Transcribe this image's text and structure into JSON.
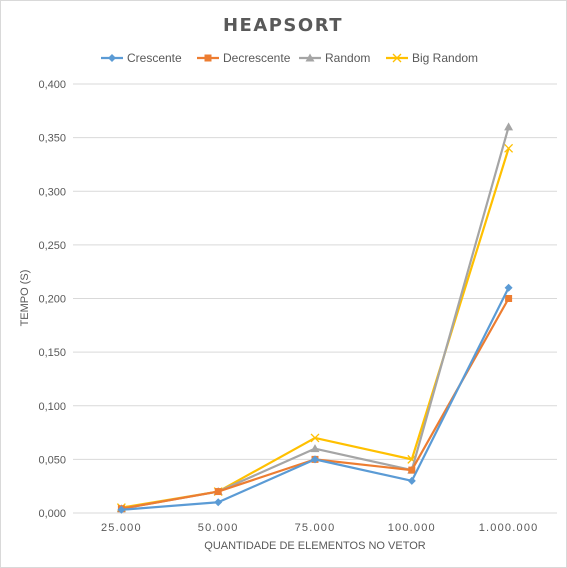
{
  "chart_data": {
    "type": "line",
    "title": "HEAPSORT",
    "xlabel": "QUANTIDADE DE ELEMENTOS NO VETOR",
    "ylabel": "TEMPO (S)",
    "categories": [
      "25.000",
      "50.000",
      "75.000",
      "100.000",
      "1.000.000"
    ],
    "ylim": [
      0,
      0.4
    ],
    "yticks": [
      0,
      0.05,
      0.1,
      0.15,
      0.2,
      0.25,
      0.3,
      0.35,
      0.4
    ],
    "ytick_labels": [
      "0,000",
      "0,050",
      "0,100",
      "0,150",
      "0,200",
      "0,250",
      "0,300",
      "0,350",
      "0,400"
    ],
    "grid": true,
    "legend_position": "top",
    "series": [
      {
        "name": "Crescente",
        "values": [
          0.003,
          0.01,
          0.05,
          0.03,
          0.21
        ],
        "color": "#5b9bd5",
        "marker": "diamond"
      },
      {
        "name": "Decrescente",
        "values": [
          0.004,
          0.02,
          0.05,
          0.04,
          0.2
        ],
        "color": "#ed7d31",
        "marker": "square"
      },
      {
        "name": "Random",
        "values": [
          0.004,
          0.02,
          0.06,
          0.04,
          0.36
        ],
        "color": "#a5a5a5",
        "marker": "triangle"
      },
      {
        "name": "Big Random",
        "values": [
          0.005,
          0.02,
          0.07,
          0.05,
          0.34
        ],
        "color": "#ffc000",
        "marker": "x"
      }
    ]
  }
}
